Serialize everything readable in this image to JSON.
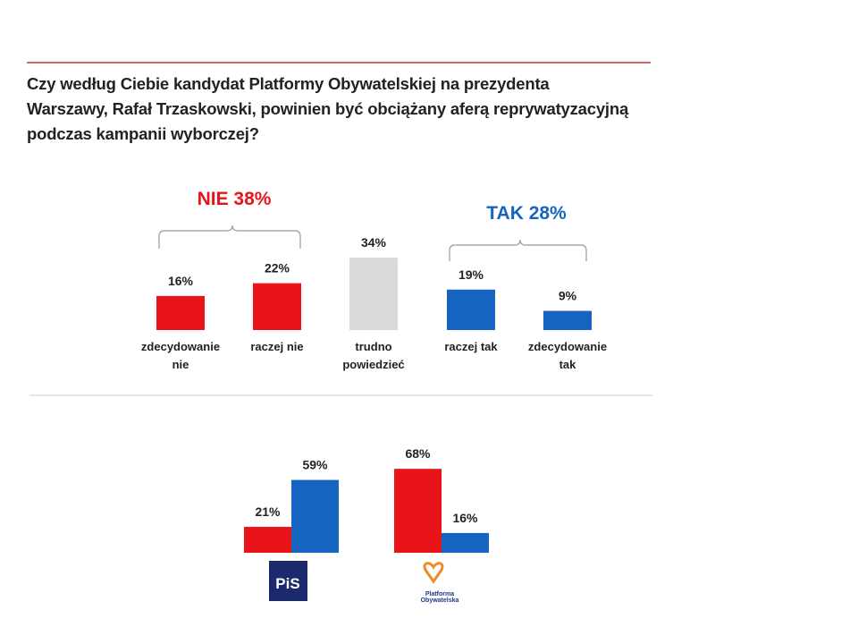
{
  "chart_data": [
    {
      "type": "bar",
      "title": [
        "Czy według Ciebie kandydat Platformy Obywatelskiej na prezydenta",
        "Warszawy, Rafał Trzaskowski, powinien być obciążany aferą reprywatyzacyjną",
        "podczas kampanii wyborczej?"
      ],
      "annotations": [
        {
          "text": "NIE 38%",
          "color": "#e8141a"
        },
        {
          "text": "TAK 28%",
          "color": "#1565c0"
        }
      ],
      "categories": [
        "zdecydowanie nie",
        "raczej nie",
        "trudno powiedzieć",
        "raczej tak",
        "zdecydowanie tak"
      ],
      "values": [
        16,
        22,
        34,
        19,
        9
      ],
      "value_labels": [
        "16%",
        "22%",
        "34%",
        "19%",
        "9%"
      ],
      "colors": [
        "#e8141a",
        "#e8141a",
        "#d9d9d9",
        "#1565c0",
        "#1565c0"
      ]
    },
    {
      "type": "grouped-bar",
      "categories": [
        "PiS",
        "Platforma Obywatelska"
      ],
      "series": [
        {
          "color": "#e8141a",
          "values": [
            21,
            68
          ],
          "value_labels": [
            "21%",
            "68%"
          ]
        },
        {
          "color": "#1565c0",
          "values": [
            59,
            16
          ],
          "value_labels": [
            "59%",
            "16%"
          ]
        }
      ]
    }
  ]
}
